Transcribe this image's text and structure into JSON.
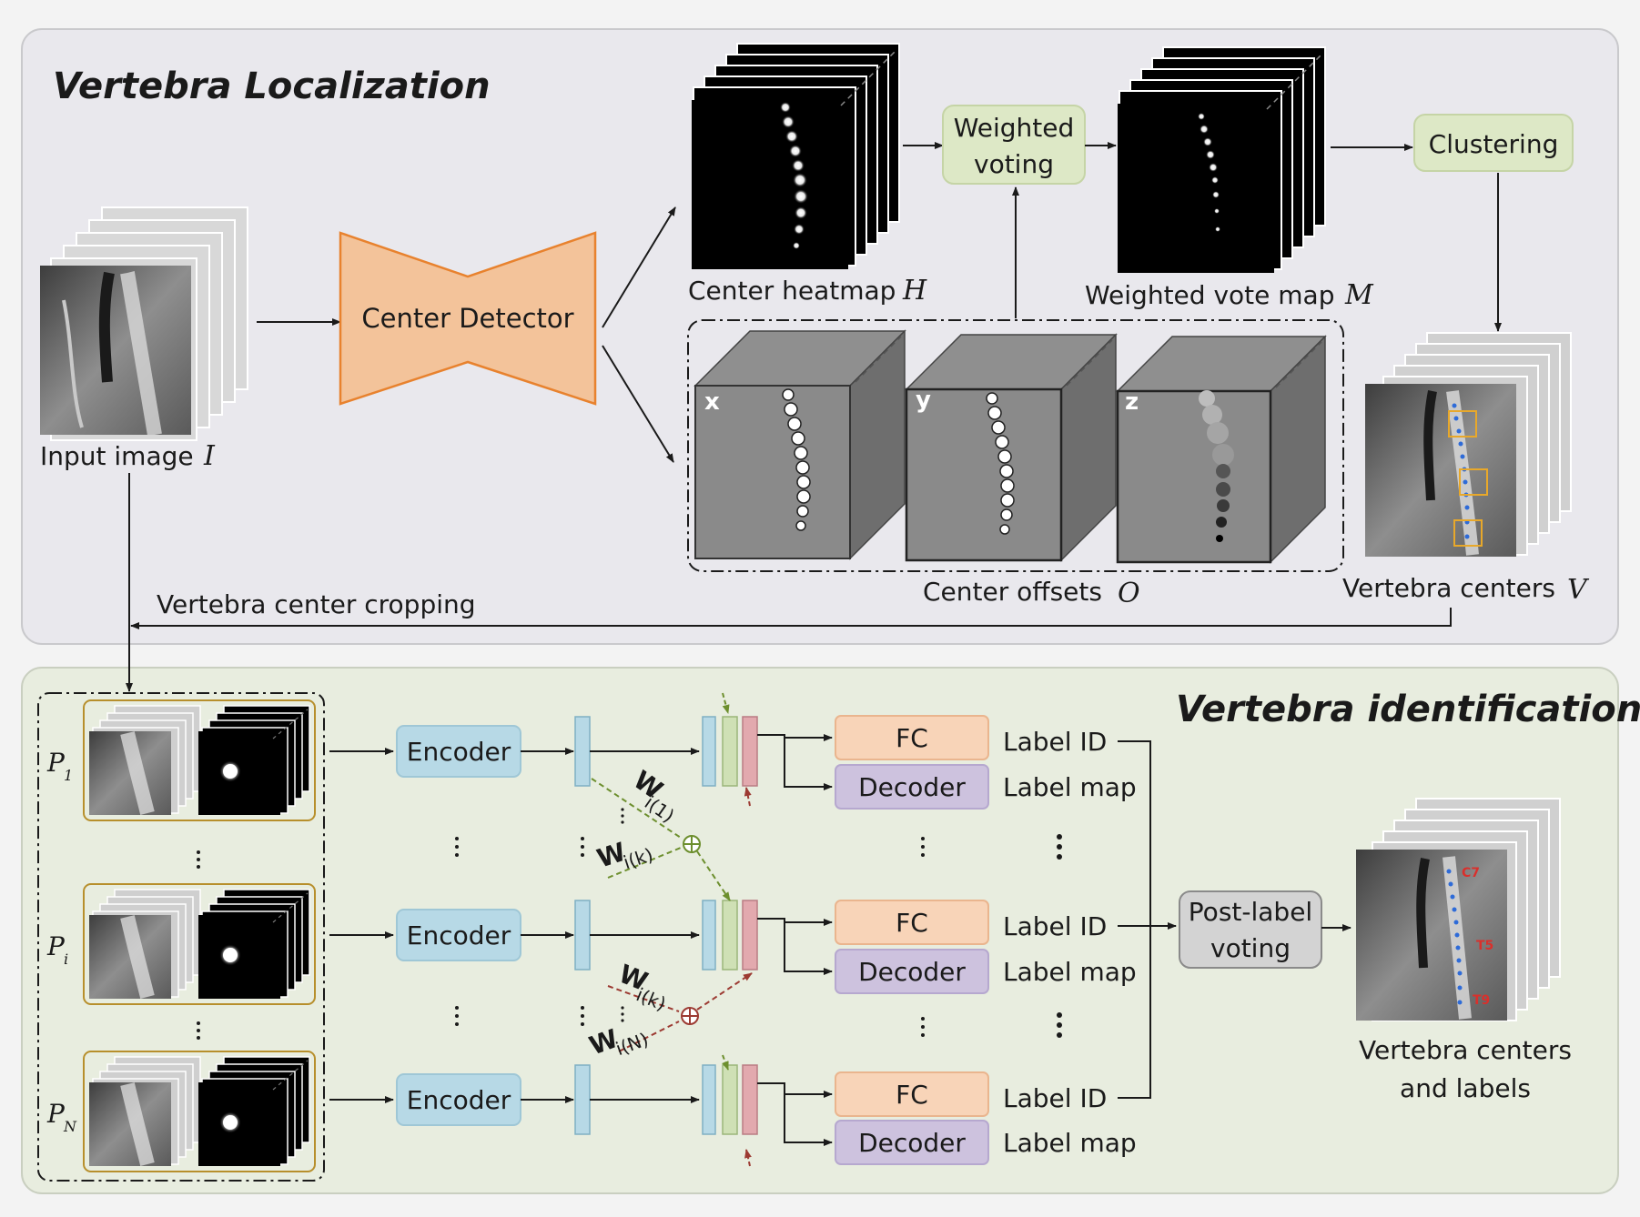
{
  "sections": {
    "localization_title": "Vertebra Localization",
    "identification_title": "Vertebra identification"
  },
  "localization": {
    "input_label": "Input image",
    "input_symbol": "I",
    "center_detector": "Center Detector",
    "heatmap_label": "Center heatmap",
    "heatmap_symbol": "H",
    "weighted_voting_line1": "Weighted",
    "weighted_voting_line2": "voting",
    "vote_map_label": "Weighted vote map",
    "vote_map_symbol": "M",
    "clustering": "Clustering",
    "offset_axes": [
      "x",
      "y",
      "z"
    ],
    "offsets_label": "Center offsets",
    "offsets_symbol": "O",
    "centers_label": "Vertebra centers",
    "centers_symbol": "V",
    "cropping_label": "Vertebra center cropping"
  },
  "identification": {
    "patches": [
      {
        "symbol": "P",
        "sub": "1"
      },
      {
        "symbol": "P",
        "sub": "i"
      },
      {
        "symbol": "P",
        "sub": "N"
      }
    ],
    "encoder": "Encoder",
    "fc": "FC",
    "decoder": "Decoder",
    "label_id": "Label ID",
    "label_map": "Label map",
    "weights": {
      "w1": "W",
      "w1_sub": "i(1)",
      "wk_top": "W",
      "wk_top_sub": "i(k)",
      "wk_bottom": "W",
      "wk_bottom_sub": "i(k)",
      "wn": "W",
      "wn_sub": "i(N)"
    },
    "post_label_line1": "Post-label",
    "post_label_line2": "voting",
    "output_line1": "Vertebra centers",
    "output_line2": "and labels",
    "vertebra_tags": [
      "C7",
      "T5",
      "T9"
    ]
  },
  "colors": {
    "localization_bg": "#e9e8ed",
    "identification_bg": "#e8eddf",
    "detector_fill": "#f3c39a",
    "detector_stroke": "#e8822e",
    "green_box": "#dde8c6",
    "encoder_fill": "#b7d9e6",
    "fc_fill": "#f8d4b8",
    "decoder_fill": "#cdc2de",
    "post_label_fill": "#d3d3d3",
    "feature_pink": "#e2a9ae",
    "feature_green": "#cfe0b5",
    "tag_red": "#d9302c",
    "green_arrow": "#6d8f2e",
    "red_arrow": "#9c3a32"
  }
}
